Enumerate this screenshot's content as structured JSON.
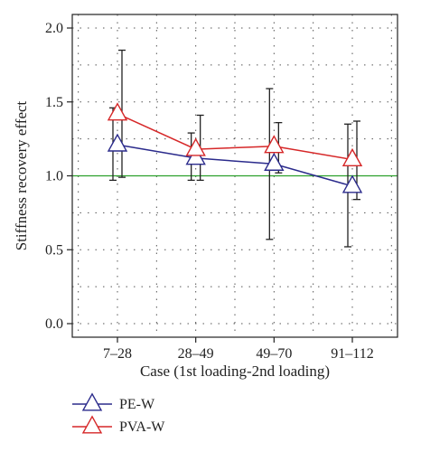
{
  "chart_data": {
    "type": "line",
    "title": "",
    "xlabel": "Case (1st loading-2nd loading)",
    "ylabel": "Stiffness recovery effect",
    "categories": [
      "7–28",
      "28–49",
      "49–70",
      "91–112"
    ],
    "ylim": [
      0.0,
      2.0
    ],
    "yticks": [
      "0.0",
      "0.5",
      "1.0",
      "1.5",
      "2.0"
    ],
    "grid": true,
    "reference_line": {
      "y": 1.0,
      "color": "#2ca02c"
    },
    "legend_position": "bottom-left",
    "series": [
      {
        "name": "PE-W",
        "color": "#2b2b8c",
        "marker": "triangle",
        "values": [
          1.21,
          1.12,
          1.08,
          0.93
        ],
        "err_low": [
          0.97,
          0.97,
          0.57,
          0.52
        ],
        "err_high": [
          1.46,
          1.29,
          1.59,
          1.35
        ]
      },
      {
        "name": "PVA-W",
        "color": "#d62728",
        "marker": "triangle",
        "values": [
          1.42,
          1.18,
          1.2,
          1.11
        ],
        "err_low": [
          0.99,
          0.97,
          1.02,
          0.84
        ],
        "err_high": [
          1.85,
          1.41,
          1.36,
          1.37
        ]
      }
    ]
  }
}
